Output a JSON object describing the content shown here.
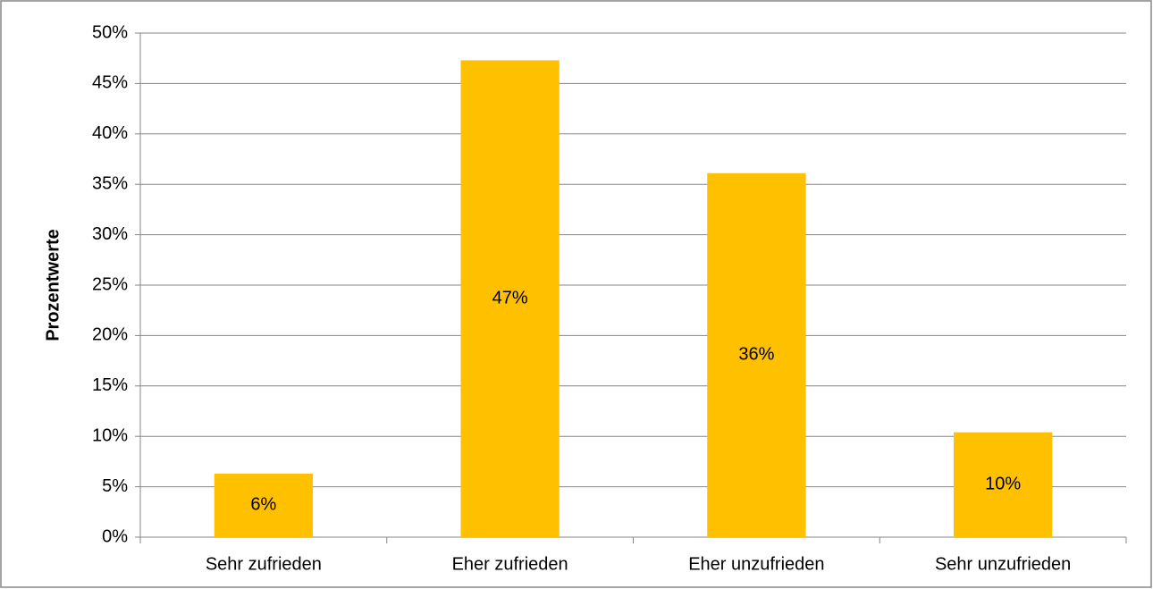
{
  "chart_data": {
    "type": "bar",
    "y_label": "Prozentwerte",
    "categories": [
      "Sehr zufrieden",
      "Eher zufrieden",
      "Eher unzufrieden",
      "Sehr unzufrieden"
    ],
    "values": [
      6.3,
      47.3,
      36.1,
      10.4
    ],
    "value_labels": [
      "6%",
      "47%",
      "36%",
      "10%"
    ],
    "color": "#ffc000",
    "ylim": [
      0,
      50
    ],
    "yticks": [
      {
        "value": 0,
        "label": "0%"
      },
      {
        "value": 5,
        "label": "5%"
      },
      {
        "value": 10,
        "label": "10%"
      },
      {
        "value": 15,
        "label": "15%"
      },
      {
        "value": 20,
        "label": "20%"
      },
      {
        "value": 25,
        "label": "25%"
      },
      {
        "value": 30,
        "label": "30%"
      },
      {
        "value": 35,
        "label": "35%"
      },
      {
        "value": 40,
        "label": "40%"
      },
      {
        "value": 45,
        "label": "45%"
      },
      {
        "value": 50,
        "label": "50%"
      }
    ],
    "grid": true
  }
}
